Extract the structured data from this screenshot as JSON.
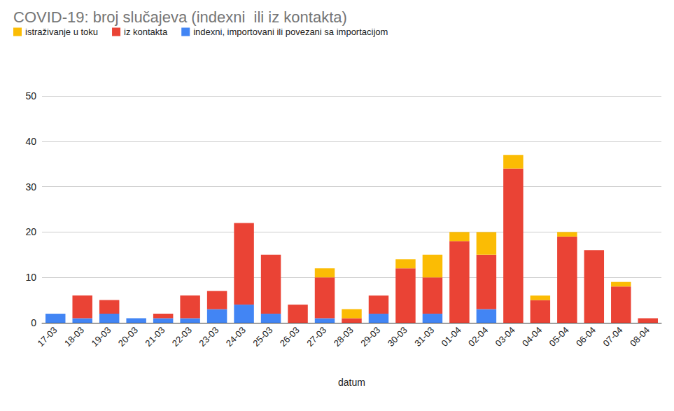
{
  "chart_data": {
    "type": "bar",
    "title": "COVID-19: broj slučajeva (indexni  ili iz kontakta)",
    "x_label": "datum",
    "categories": [
      "17-03",
      "18-03",
      "19-03",
      "20-03",
      "21-03",
      "22-03",
      "23-03",
      "24-03",
      "25-03",
      "26-03",
      "27-03",
      "28-03",
      "29-03",
      "30-03",
      "31-03",
      "01-04",
      "02-04",
      "03-04",
      "04-04",
      "05-04",
      "06-04",
      "07-04",
      "08-04"
    ],
    "series": [
      {
        "name": "istraživanje u toku",
        "color": "#fbbc04",
        "values": [
          0,
          0,
          0,
          0,
          0,
          0,
          0,
          0,
          0,
          0,
          2,
          2,
          0,
          2,
          5,
          2,
          5,
          3,
          1,
          1,
          0,
          1,
          0
        ]
      },
      {
        "name": "iz kontakta",
        "color": "#ea4335",
        "values": [
          0,
          5,
          3,
          0,
          1,
          5,
          4,
          18,
          13,
          4,
          9,
          1,
          4,
          12,
          8,
          18,
          12,
          34,
          5,
          19,
          16,
          8,
          1
        ]
      },
      {
        "name": "indexni, importovani ili povezani sa importacijom",
        "color": "#4285f4",
        "values": [
          2,
          1,
          2,
          1,
          1,
          1,
          3,
          4,
          2,
          0,
          1,
          0,
          2,
          0,
          2,
          0,
          3,
          0,
          0,
          0,
          0,
          0,
          0
        ]
      }
    ],
    "stacked": true,
    "ylim": [
      0,
      50
    ],
    "yticks": [
      0,
      10,
      20,
      30,
      40,
      50
    ],
    "grid": true,
    "legend": "top-left"
  }
}
